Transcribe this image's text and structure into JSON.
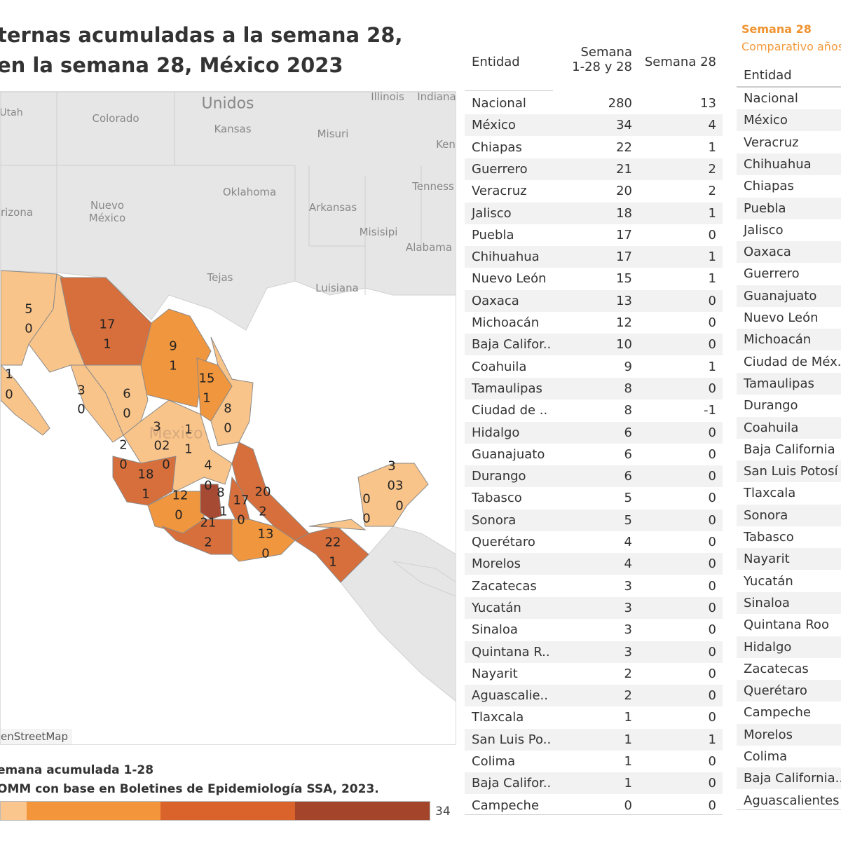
{
  "title": {
    "line1": "ternas acumuladas a la semana 28,",
    "line2": "en la semana 28, México 2023"
  },
  "map": {
    "place_labels": [
      "Utah",
      "Colorado",
      "Unidos",
      "Kansas",
      "Misuri",
      "Illinois",
      "Indiana",
      "Ken",
      "Oklahoma",
      "Arkansas",
      "Tenness",
      "Nuevo\nMéxico",
      "rizona",
      "Misisipi",
      "Alabama",
      "Tejas",
      "Luisiana",
      "Mexico"
    ],
    "value_labels": [
      "5",
      "0",
      "17",
      "1",
      "9",
      "1",
      "15",
      "1",
      "8",
      "0",
      "1",
      "0",
      "3",
      "0",
      "6",
      "0",
      "3",
      "1",
      "2",
      "0",
      "02",
      "1",
      "0",
      "18",
      "1",
      "4",
      "0",
      "8",
      "12",
      "0",
      "1",
      "17",
      "20",
      "0",
      "2",
      "21",
      "2",
      "13",
      "0",
      "22",
      "1",
      "0",
      "0",
      "3",
      "03",
      "0"
    ],
    "attribution": "enStreetMap",
    "colors": {
      "land": "#e6e6e6",
      "light": "#f9c48a",
      "mid": "#f0963e",
      "dark": "#d66f3c",
      "darkest": "#a64a33"
    }
  },
  "legend": {
    "line1": "emana acumulada 1-28",
    "line2": "OMM con base en Boletines de Epidemiología SSA, 2023.",
    "max": "34",
    "colors": [
      "#fbc58e",
      "#f3953b",
      "#d9632b",
      "#a3442b"
    ]
  },
  "table1": {
    "headers": {
      "entidad": "Entidad",
      "sem_a1": "Semana",
      "sem_a2": "1-28 y 28",
      "sem_b": "Semana 28"
    },
    "rows": [
      [
        "Nacional",
        "280",
        "13"
      ],
      [
        "México",
        "34",
        "4"
      ],
      [
        "Chiapas",
        "22",
        "1"
      ],
      [
        "Guerrero",
        "21",
        "2"
      ],
      [
        "Veracruz",
        "20",
        "2"
      ],
      [
        "Jalisco",
        "18",
        "1"
      ],
      [
        "Puebla",
        "17",
        "0"
      ],
      [
        "Chihuahua",
        "17",
        "1"
      ],
      [
        "Nuevo León",
        "15",
        "1"
      ],
      [
        "Oaxaca",
        "13",
        "0"
      ],
      [
        "Michoacán",
        "12",
        "0"
      ],
      [
        "Baja Califor..",
        "10",
        "0"
      ],
      [
        "Coahuila",
        "9",
        "1"
      ],
      [
        "Tamaulipas",
        "8",
        "0"
      ],
      [
        "Ciudad de ..",
        "8",
        "-1"
      ],
      [
        "Hidalgo",
        "6",
        "0"
      ],
      [
        "Guanajuato",
        "6",
        "0"
      ],
      [
        "Durango",
        "6",
        "0"
      ],
      [
        "Tabasco",
        "5",
        "0"
      ],
      [
        "Sonora",
        "5",
        "0"
      ],
      [
        "Querétaro",
        "4",
        "0"
      ],
      [
        "Morelos",
        "4",
        "0"
      ],
      [
        "Zacatecas",
        "3",
        "0"
      ],
      [
        "Yucatán",
        "3",
        "0"
      ],
      [
        "Sinaloa",
        "3",
        "0"
      ],
      [
        "Quintana R..",
        "3",
        "0"
      ],
      [
        "Nayarit",
        "2",
        "0"
      ],
      [
        "Aguascalie..",
        "2",
        "0"
      ],
      [
        "Tlaxcala",
        "1",
        "0"
      ],
      [
        "San Luis Po..",
        "1",
        "1"
      ],
      [
        "Colima",
        "1",
        "0"
      ],
      [
        "Baja Califor..",
        "1",
        "0"
      ],
      [
        "Campeche",
        "0",
        "0"
      ]
    ]
  },
  "table2": {
    "subtitle1": "Semana 28",
    "subtitle2": "Comparativo años",
    "header": "Entidad",
    "rows": [
      "Nacional",
      "México",
      "Veracruz",
      "Chihuahua",
      "Chiapas",
      "Puebla",
      "Jalisco",
      "Oaxaca",
      "Guerrero",
      "Guanajuato",
      "Nuevo León",
      "Michoacán",
      "Ciudad de Méx..",
      "Tamaulipas",
      "Durango",
      "Coahuila",
      "Baja California",
      "San Luis Potosí",
      "Tlaxcala",
      "Sonora",
      "Tabasco",
      "Nayarit",
      "Yucatán",
      "Sinaloa",
      "Quintana Roo",
      "Hidalgo",
      "Zacatecas",
      "Querétaro",
      "Campeche",
      "Morelos",
      "Colima",
      "Baja California..",
      "Aguascalientes"
    ]
  }
}
